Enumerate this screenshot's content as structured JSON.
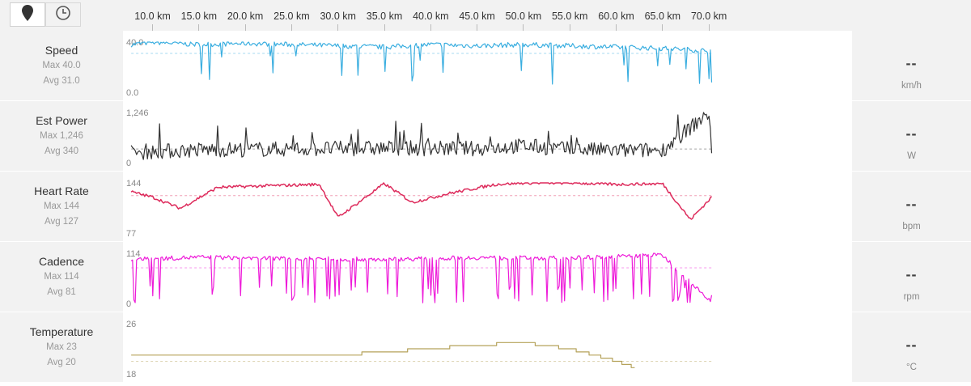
{
  "view_toggle": {
    "map_icon": "map-pin-icon",
    "time_icon": "clock-icon"
  },
  "distance_axis": {
    "labels": [
      "10.0 km",
      "15.0 km",
      "20.0 km",
      "25.0 km",
      "30.0 km",
      "35.0 km",
      "40.0 km",
      "45.0 km",
      "50.0 km",
      "55.0 km",
      "60.0 km",
      "65.0 km",
      "70.0 km"
    ]
  },
  "metrics": [
    {
      "key": "speed",
      "name": "Speed",
      "max": "Max 40.0",
      "avg": "Avg 31.0",
      "current": "--",
      "unit": "km/h",
      "axis_top": "40.0",
      "axis_bottom": "0.0",
      "color": "#3aaee0"
    },
    {
      "key": "power",
      "name": "Est Power",
      "max": "Max 1,246",
      "avg": "Avg 340",
      "current": "--",
      "unit": "W",
      "axis_top": "1,246",
      "axis_bottom": "0",
      "color": "#333333"
    },
    {
      "key": "heart_rate",
      "name": "Heart Rate",
      "max": "Max 144",
      "avg": "Avg 127",
      "current": "--",
      "unit": "bpm",
      "axis_top": "144",
      "axis_bottom": "77",
      "color": "#dd2a5b"
    },
    {
      "key": "cadence",
      "name": "Cadence",
      "max": "Max 114",
      "avg": "Avg 81",
      "current": "--",
      "unit": "rpm",
      "axis_top": "114",
      "axis_bottom": "0",
      "color": "#ee1bd9"
    },
    {
      "key": "temperature",
      "name": "Temperature",
      "max": "Max 23",
      "avg": "Avg 20",
      "current": "--",
      "unit": "°C",
      "axis_top": "26",
      "axis_bottom": "18",
      "color": "#b5a25a"
    }
  ],
  "chart_data": [
    {
      "type": "line",
      "metric": "Speed",
      "x": [
        7.7,
        10,
        15,
        20,
        25,
        30,
        35,
        40,
        45,
        50,
        55,
        60,
        65,
        70.3
      ],
      "y": [
        38,
        40,
        38,
        39,
        38,
        37,
        36,
        38,
        37,
        38,
        37,
        36,
        35,
        33
      ],
      "ylim": [
        0,
        40
      ],
      "avg": 31.0
    },
    {
      "type": "line",
      "metric": "Est Power",
      "x": [
        7.7,
        15,
        25,
        35,
        45,
        50,
        55,
        60,
        65,
        70,
        70.3
      ],
      "y": [
        250,
        320,
        340,
        360,
        350,
        420,
        330,
        300,
        310,
        1246,
        300
      ],
      "ylim": [
        0,
        1246
      ],
      "avg": 340
    },
    {
      "type": "line",
      "metric": "Heart Rate",
      "x": [
        7.7,
        10,
        13,
        17,
        22,
        28,
        30,
        35,
        38,
        42,
        47,
        50,
        55,
        60,
        65,
        68,
        70.3
      ],
      "y": [
        132,
        125,
        110,
        138,
        140,
        142,
        98,
        143,
        118,
        130,
        142,
        144,
        144,
        142,
        143,
        95,
        125
      ],
      "ylim": [
        77,
        144
      ],
      "avg": 127
    },
    {
      "type": "line",
      "metric": "Cadence",
      "x": [
        7.7,
        15,
        25,
        35,
        45,
        55,
        65,
        70.3
      ],
      "y": [
        100,
        105,
        102,
        100,
        104,
        103,
        110,
        0
      ],
      "ylim": [
        0,
        114
      ],
      "avg": 81
    },
    {
      "type": "line",
      "metric": "Temperature",
      "x": [
        7.7,
        10,
        20,
        30,
        35,
        40,
        44,
        50,
        55,
        59,
        62
      ],
      "y": [
        21,
        21,
        21,
        21,
        21.5,
        22,
        22.5,
        23,
        22,
        20.5,
        19
      ],
      "ylim": [
        18,
        26
      ],
      "avg": 20
    }
  ]
}
